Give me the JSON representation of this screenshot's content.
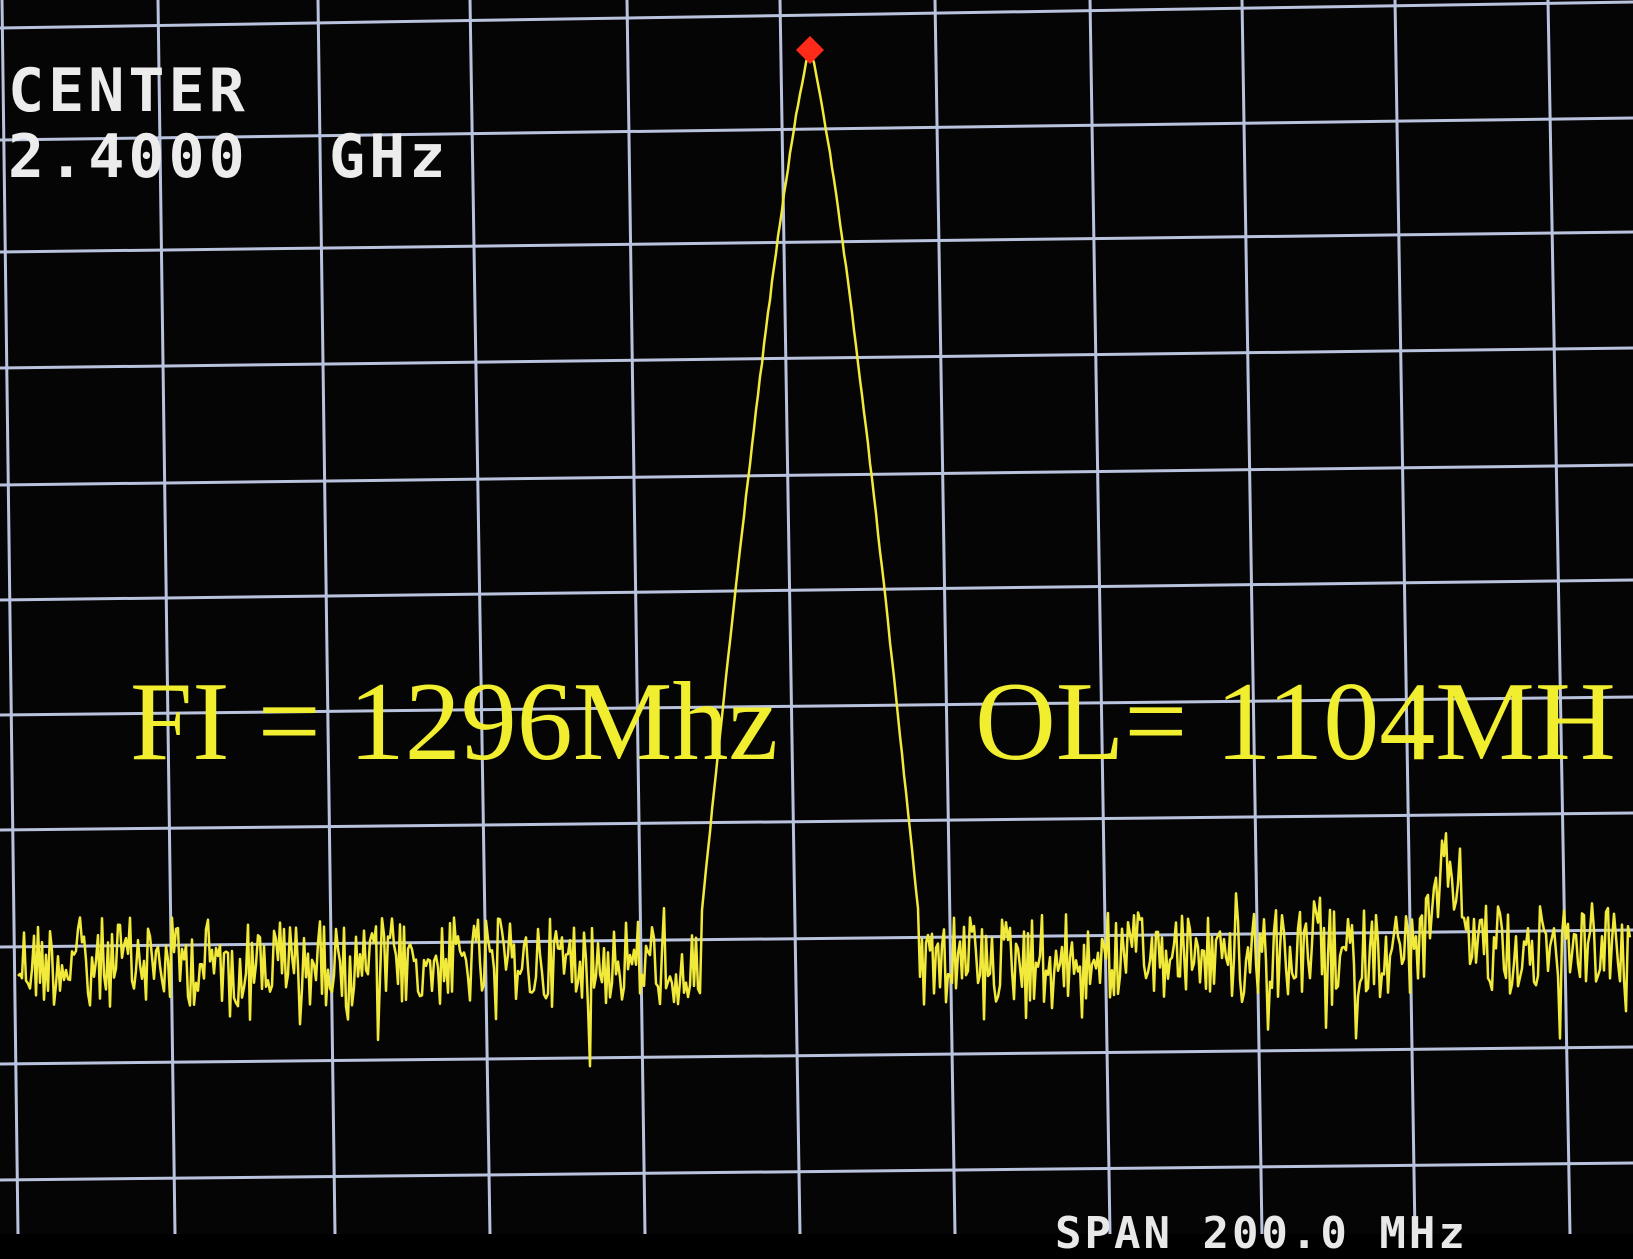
{
  "display": {
    "center_label": "CENTER",
    "center_frequency": "2.4000  GHz",
    "span_readout": "SPAN 200.0 MHz"
  },
  "annotations": {
    "fi_label": "FI = 1296Mhz",
    "ol_label": "OL= 1104MH"
  },
  "colors": {
    "background": "#050505",
    "grid": "#b9c3de",
    "trace": "#f2ea3a",
    "marker": "#ff2a1a",
    "annotation": "#f0ee2e",
    "readout": "#ececec"
  },
  "marker": {
    "icon": "red-diamond-marker-icon"
  }
}
